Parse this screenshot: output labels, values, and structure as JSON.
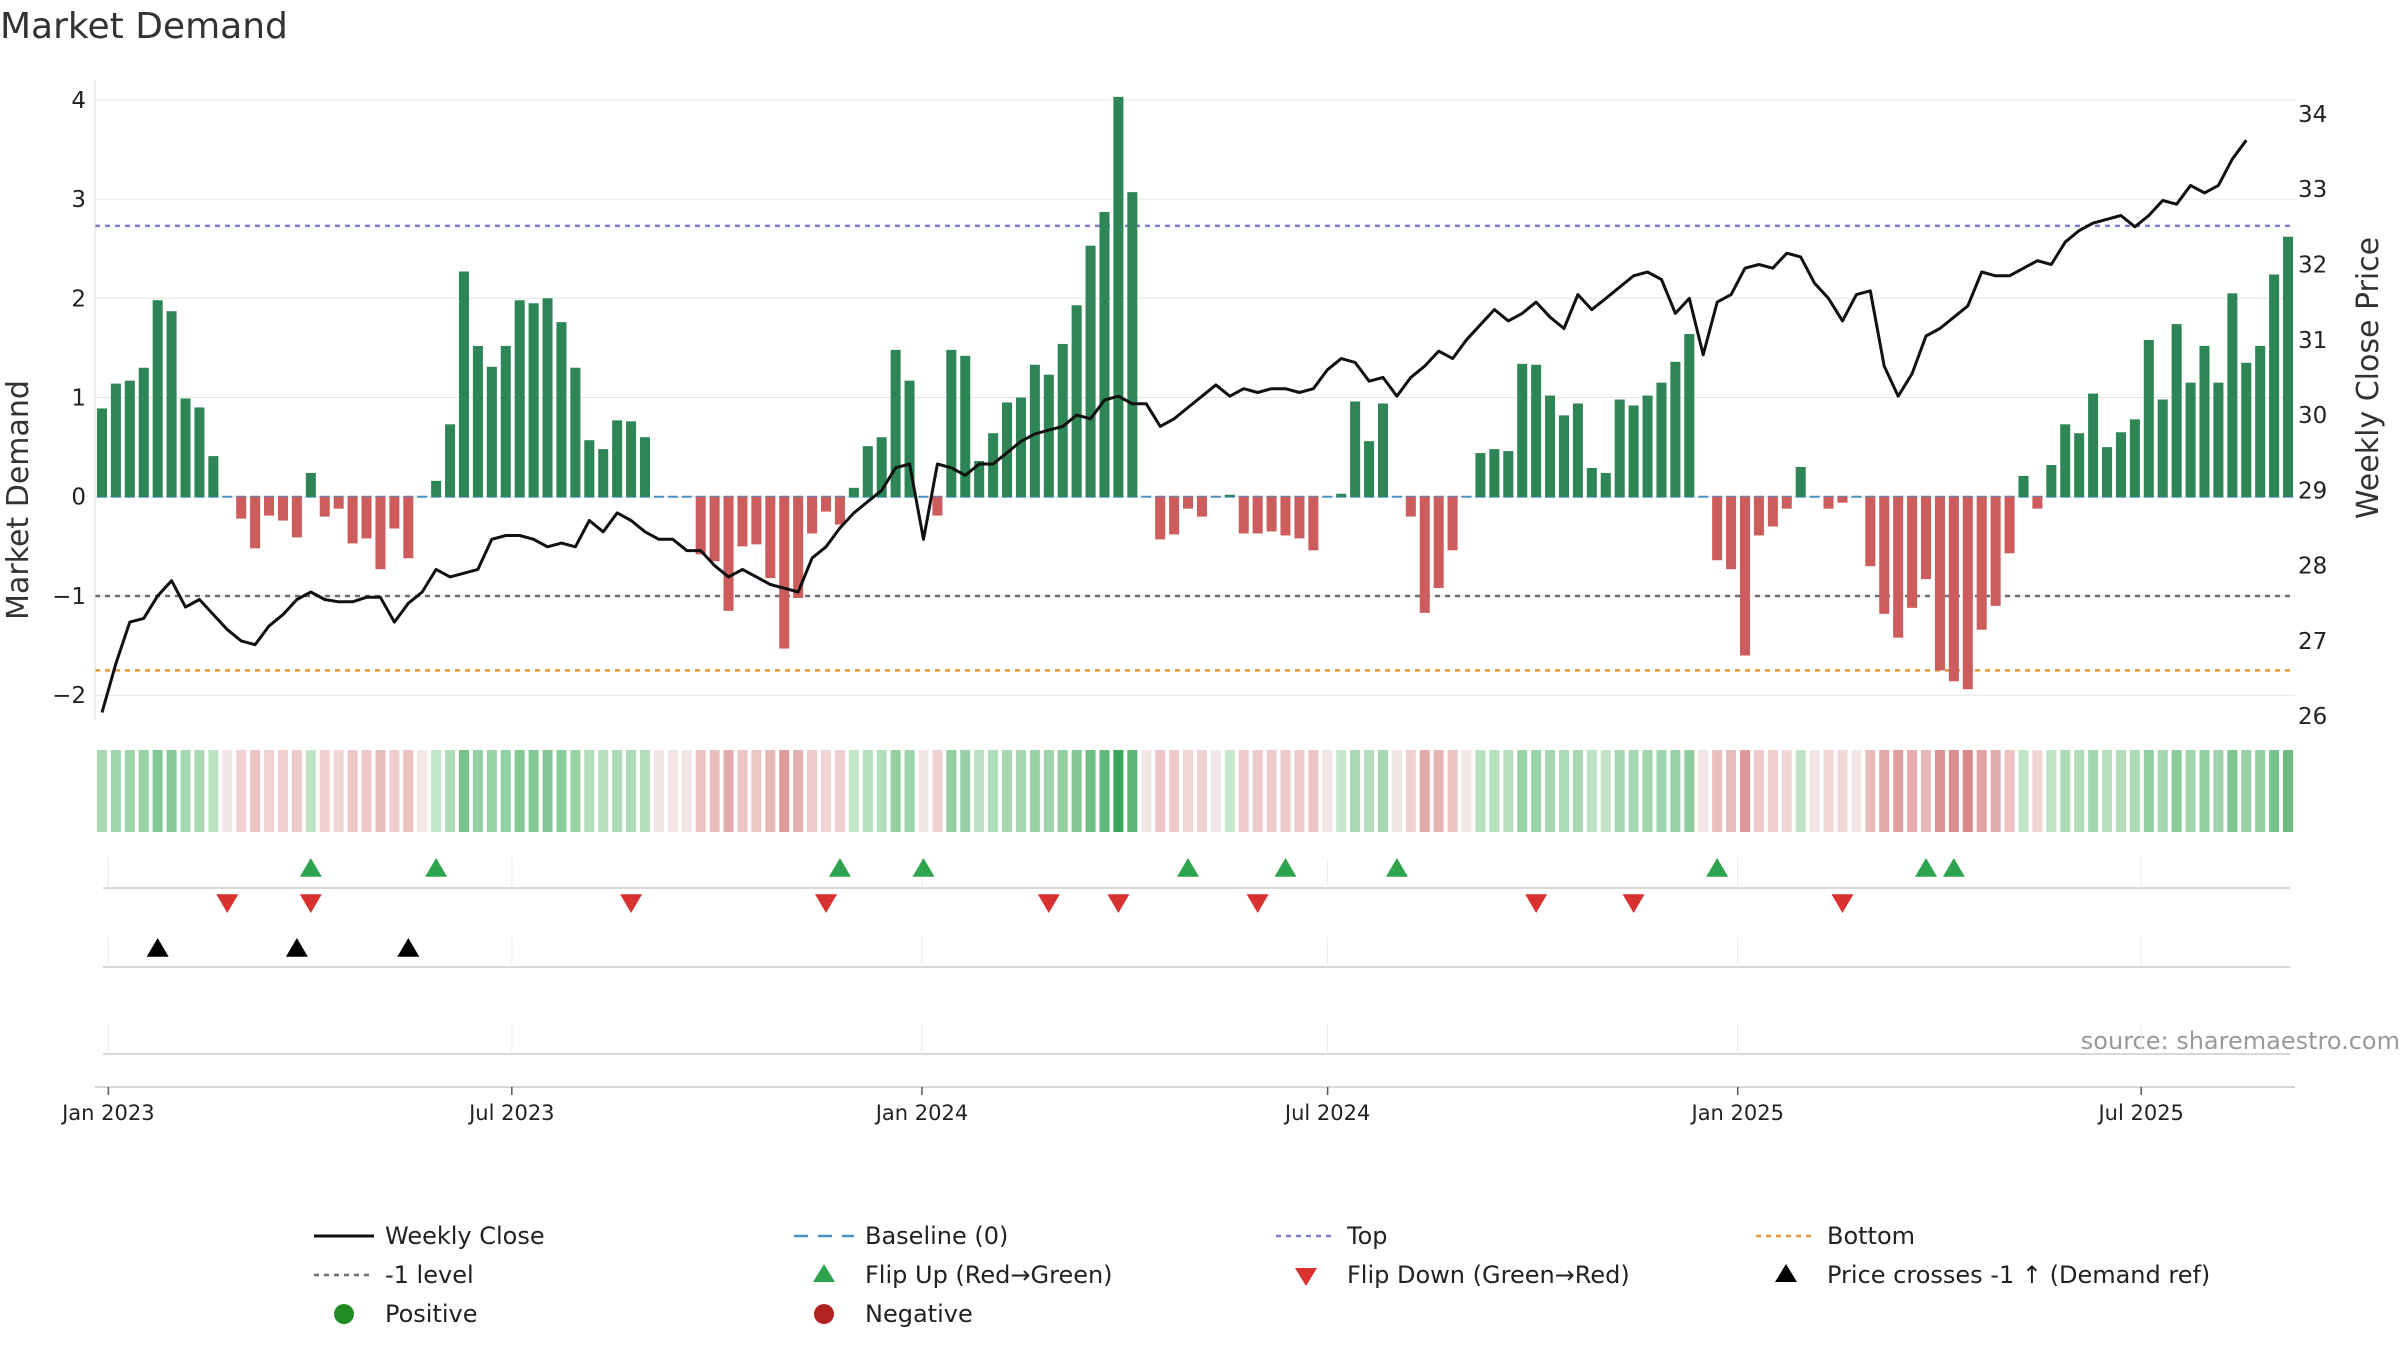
{
  "chart_data": {
    "type": "bar",
    "title": "Market Demand",
    "ylabel": "Market Demand",
    "y2label": "Weekly Close Price",
    "ylim": [
      -2.25,
      4.2
    ],
    "y2lim": [
      25.95,
      34.45
    ],
    "yticks": [
      4,
      3,
      2,
      1,
      0,
      -1,
      -2
    ],
    "y2ticks": [
      26,
      27,
      28,
      29,
      30,
      31,
      32,
      33,
      34
    ],
    "x_start": "2022-12-26",
    "x_end": "2025-09-08",
    "x_ticks": [
      {
        "date": "2023-01-01",
        "label": "Jan 2023"
      },
      {
        "date": "2023-07-01",
        "label": "Jul 2023"
      },
      {
        "date": "2024-01-01",
        "label": "Jan 2024"
      },
      {
        "date": "2024-07-01",
        "label": "Jul 2024"
      },
      {
        "date": "2025-01-01",
        "label": "Jan 2025"
      },
      {
        "date": "2025-07-01",
        "label": "Jul 2025"
      }
    ],
    "demand": [
      0.89,
      1.14,
      1.17,
      1.3,
      1.98,
      1.87,
      0.99,
      0.9,
      0.41,
      0.0,
      -0.22,
      -0.52,
      -0.19,
      -0.24,
      -0.41,
      0.24,
      -0.2,
      -0.12,
      -0.47,
      -0.42,
      -0.73,
      -0.32,
      -0.62,
      0.0,
      0.16,
      0.73,
      2.27,
      1.52,
      1.31,
      1.52,
      1.98,
      1.95,
      2.0,
      1.76,
      1.3,
      0.57,
      0.48,
      0.77,
      0.76,
      0.6,
      0.0,
      0.0,
      0.0,
      -0.58,
      -0.65,
      -1.15,
      -0.5,
      -0.48,
      -0.82,
      -1.53,
      -1.02,
      -0.37,
      -0.15,
      -0.28,
      0.09,
      0.51,
      0.6,
      1.48,
      1.17,
      0.0,
      -0.19,
      1.48,
      1.42,
      0.36,
      0.64,
      0.95,
      1.0,
      1.33,
      1.23,
      1.54,
      1.93,
      2.53,
      2.87,
      4.03,
      3.07,
      0.0,
      -0.43,
      -0.38,
      -0.12,
      -0.2,
      0.0,
      0.02,
      -0.37,
      -0.37,
      -0.35,
      -0.39,
      -0.42,
      -0.54,
      0.0,
      0.03,
      0.96,
      0.56,
      0.94,
      0.0,
      -0.2,
      -1.17,
      -0.92,
      -0.54,
      0.0,
      0.44,
      0.48,
      0.46,
      1.34,
      1.33,
      1.02,
      0.82,
      0.94,
      0.29,
      0.24,
      0.98,
      0.92,
      1.02,
      1.15,
      1.36,
      1.64,
      0.0,
      -0.64,
      -0.73,
      -1.6,
      -0.39,
      -0.3,
      -0.12,
      0.3,
      0.0,
      -0.12,
      -0.06,
      0.0,
      -0.7,
      -1.18,
      -1.42,
      -1.12,
      -0.83,
      -1.75,
      -1.86,
      -1.94,
      -1.34,
      -1.1,
      -0.57,
      0.21,
      -0.12,
      0.32,
      0.73,
      0.64,
      1.04,
      0.5,
      0.65,
      0.78,
      1.58,
      0.98,
      1.74,
      1.15,
      1.52,
      1.15,
      2.05,
      1.35,
      1.52,
      2.24,
      2.62
    ],
    "weekly_close": [
      26.05,
      26.7,
      27.25,
      27.3,
      27.6,
      27.8,
      27.45,
      27.55,
      27.35,
      27.15,
      27.0,
      26.95,
      27.2,
      27.35,
      27.55,
      27.65,
      27.55,
      27.52,
      27.52,
      27.58,
      27.58,
      27.25,
      27.5,
      27.65,
      27.95,
      27.85,
      27.9,
      27.95,
      28.35,
      28.4,
      28.4,
      28.35,
      28.25,
      28.3,
      28.25,
      28.6,
      28.45,
      28.7,
      28.6,
      28.45,
      28.35,
      28.35,
      28.2,
      28.2,
      28.0,
      27.85,
      27.95,
      27.85,
      27.75,
      27.7,
      27.65,
      28.1,
      28.25,
      28.5,
      28.7,
      28.85,
      29.0,
      29.3,
      29.35,
      28.35,
      29.35,
      29.3,
      29.2,
      29.35,
      29.35,
      29.5,
      29.65,
      29.75,
      29.8,
      29.85,
      30.0,
      29.95,
      30.2,
      30.25,
      30.15,
      30.15,
      29.85,
      29.95,
      30.1,
      30.25,
      30.4,
      30.25,
      30.35,
      30.3,
      30.35,
      30.35,
      30.3,
      30.35,
      30.6,
      30.75,
      30.7,
      30.45,
      30.5,
      30.25,
      30.5,
      30.65,
      30.85,
      30.75,
      31.0,
      31.2,
      31.4,
      31.25,
      31.35,
      31.5,
      31.3,
      31.15,
      31.6,
      31.4,
      31.55,
      31.7,
      31.85,
      31.9,
      31.8,
      31.35,
      31.55,
      30.8,
      31.5,
      31.6,
      31.95,
      32.0,
      31.95,
      32.15,
      32.1,
      31.75,
      31.55,
      31.25,
      31.6,
      31.65,
      30.65,
      30.25,
      30.55,
      31.05,
      31.15,
      31.3,
      31.45,
      31.9,
      31.85,
      31.85,
      31.95,
      32.05,
      32.0,
      32.3,
      32.45,
      32.55,
      32.6,
      32.65,
      32.5,
      32.65,
      32.85,
      32.8,
      33.05,
      32.95,
      33.05,
      33.4,
      33.65
    ],
    "flip_up_weeks": [
      15,
      24,
      53,
      59,
      78,
      85,
      93,
      116,
      131,
      133
    ],
    "flip_down_weeks": [
      9,
      15,
      38,
      52,
      68,
      73,
      83,
      103,
      110,
      125
    ],
    "cross_weeks": [
      4,
      14,
      22
    ],
    "levels": {
      "top": 2.73,
      "minus_one": -1.0,
      "bottom": -1.75,
      "baseline": 0.0
    },
    "source": "source: sharemaestro.com",
    "legend": [
      "Weekly Close",
      "Baseline (0)",
      "Top",
      "Bottom",
      "-1 level",
      "Flip Up (Red→Green)",
      "Flip Down (Green→Red)",
      "Price crosses -1 ↑ (Demand ref)",
      "Positive",
      "Negative"
    ],
    "legend_placement": "bottom",
    "colors": {
      "positive_bar": "#2e8555",
      "negative_bar": "#cd5c5c",
      "price_line": "#111111",
      "baseline": "#4a90c2",
      "top": "#8080d0",
      "minus_one": "#6e6e7a",
      "bottom": "#e69830",
      "flip_up": "#2ea44f",
      "flip_down": "#d93030",
      "cross": "#000000",
      "positive_dot": "#228b22",
      "negative_dot": "#b22222"
    }
  }
}
